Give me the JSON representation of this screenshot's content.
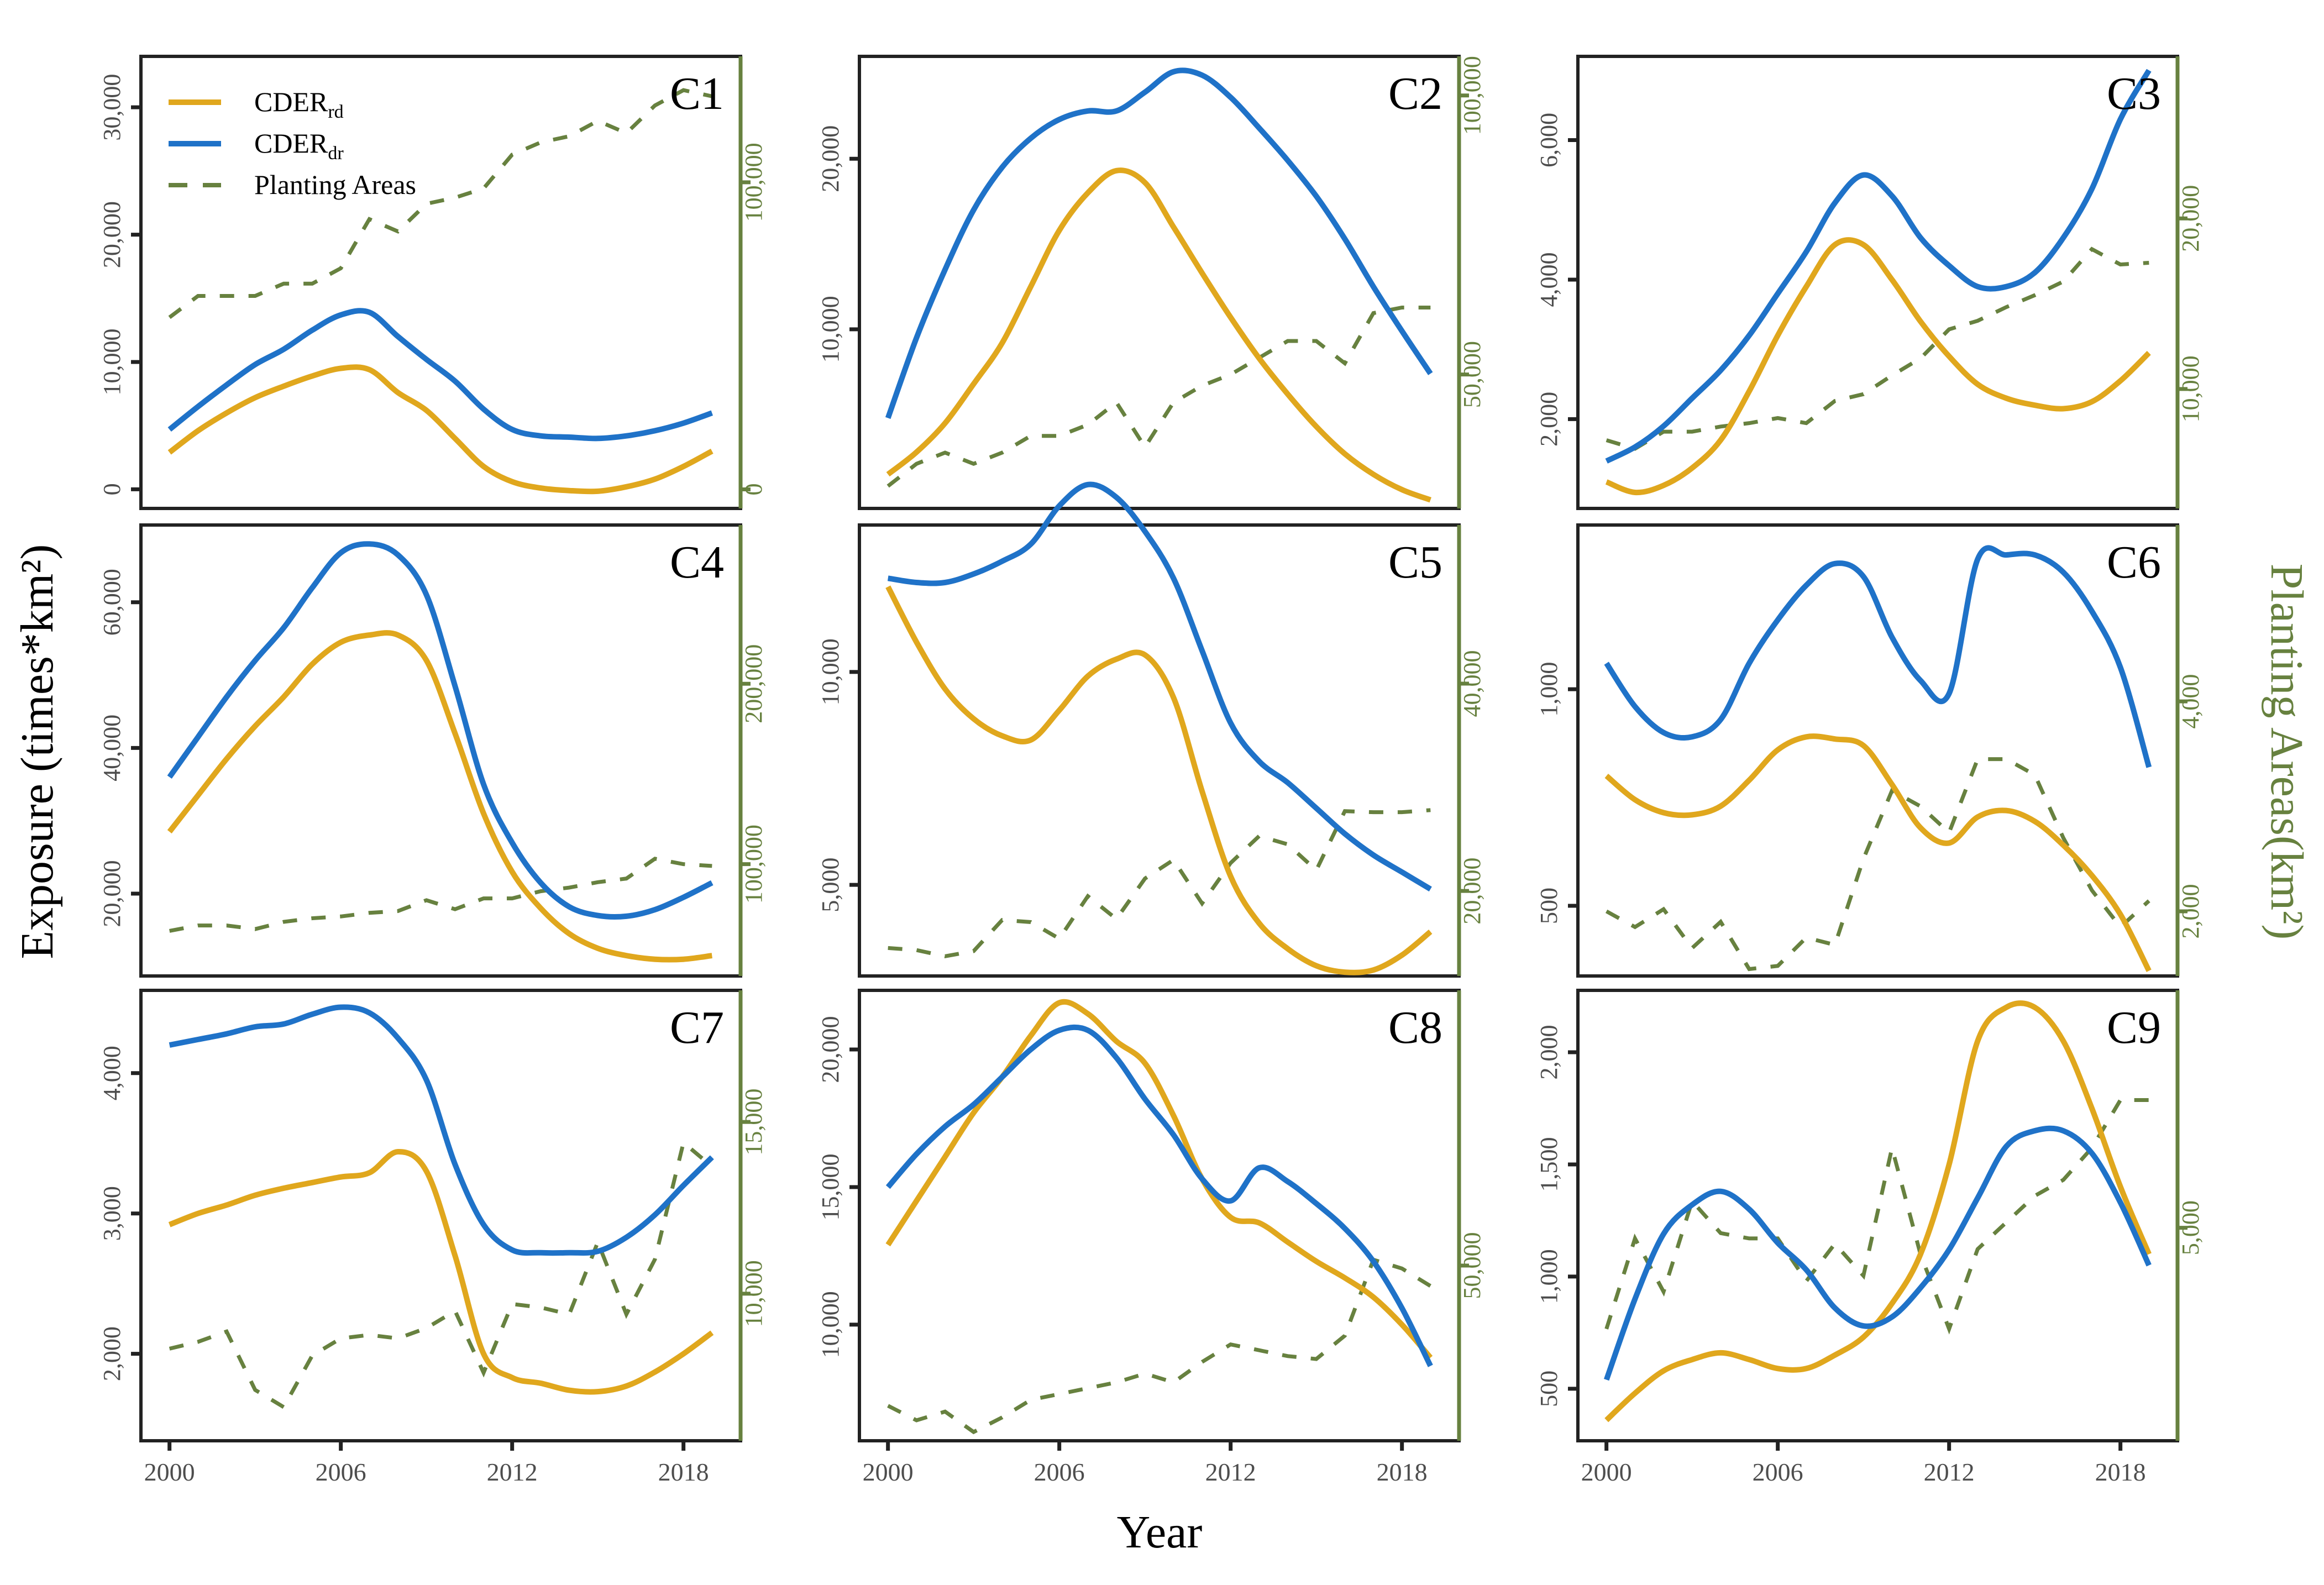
{
  "chart_data": {
    "type": "line",
    "title": "",
    "xlabel": "Year",
    "ylabel": "Exposure (times*km²)",
    "ylabel_right": "Planting Areas(km²)",
    "x": [
      2000,
      2001,
      2002,
      2003,
      2004,
      2005,
      2006,
      2007,
      2008,
      2009,
      2010,
      2011,
      2012,
      2013,
      2014,
      2015,
      2016,
      2017,
      2018,
      2019
    ],
    "xlim": [
      1999,
      2020
    ],
    "xticks": [
      2000,
      2006,
      2012,
      2018
    ],
    "grid": false,
    "legend": {
      "placement": "top-left of panel C1",
      "entries": [
        {
          "name": "CDER",
          "sub": "rd",
          "style": "solid",
          "color": "#e0a71d"
        },
        {
          "name": "CDER",
          "sub": "dr",
          "style": "solid",
          "color": "#1f72c8"
        },
        {
          "name": "Planting Areas",
          "sub": "",
          "style": "dashed",
          "color": "#67813f"
        }
      ]
    },
    "colors": {
      "rd": "#e0a71d",
      "dr": "#1f72c8",
      "planting": "#67813f",
      "axis": "#222222"
    },
    "panels": [
      {
        "label": "C1",
        "ylim": [
          -1500,
          34000
        ],
        "yticks": [
          0,
          10000,
          20000,
          30000
        ],
        "ylim_right": [
          -6200,
          141000
        ],
        "yticks_right": [
          0,
          100000
        ],
        "series": [
          {
            "name": "CDER_rd",
            "values": [
              2900,
              4600,
              6000,
              7200,
              8100,
              8900,
              9500,
              9400,
              7600,
              6200,
              4000,
              1800,
              600,
              100,
              -100,
              -150,
              200,
              800,
              1800,
              3000
            ]
          },
          {
            "name": "CDER_dr",
            "values": [
              4700,
              6500,
              8200,
              9800,
              11000,
              12500,
              13700,
              13900,
              12000,
              10200,
              8500,
              6300,
              4700,
              4200,
              4100,
              4000,
              4200,
              4600,
              5200,
              6000
            ]
          },
          {
            "name": "Planting Areas",
            "values": [
              56000,
              63000,
              63000,
              63000,
              67000,
              67000,
              72000,
              88000,
              84000,
              93000,
              95000,
              98000,
              109000,
              113000,
              115000,
              120000,
              116000,
              125000,
              130000,
              128000
            ]
          }
        ]
      },
      {
        "label": "C2",
        "ylim": [
          -500,
          26000
        ],
        "yticks": [
          10000,
          20000
        ],
        "ylim_right": [
          26000,
          107000
        ],
        "yticks_right": [
          50000,
          100000
        ],
        "series": [
          {
            "name": "CDER_rd",
            "values": [
              1500,
              2800,
              4500,
              6800,
              9200,
              12500,
              15800,
              18000,
              19300,
              18600,
              16000,
              13300,
              10700,
              8300,
              6200,
              4300,
              2700,
              1500,
              600,
              0
            ]
          },
          {
            "name": "CDER_dr",
            "values": [
              4800,
              9500,
              13500,
              17000,
              19500,
              21200,
              22300,
              22800,
              22800,
              23900,
              25100,
              24900,
              23600,
              21800,
              19900,
              17800,
              15300,
              12500,
              9900,
              7400
            ]
          },
          {
            "name": "Planting Areas",
            "values": [
              30000,
              34000,
              36000,
              34000,
              36000,
              39000,
              39000,
              41000,
              45000,
              37000,
              45000,
              48000,
              50000,
              53000,
              56000,
              56000,
              52000,
              61000,
              62000,
              62000
            ]
          }
        ]
      },
      {
        "label": "C3",
        "ylim": [
          720,
          7200
        ],
        "yticks": [
          2000,
          4000,
          6000
        ],
        "ylim_right": [
          3000,
          29500
        ],
        "yticks_right": [
          10000,
          20000
        ],
        "series": [
          {
            "name": "CDER_rd",
            "values": [
              1100,
              950,
              1050,
              1300,
              1700,
              2400,
              3200,
              3900,
              4500,
              4500,
              4000,
              3400,
              2900,
              2500,
              2300,
              2200,
              2150,
              2250,
              2550,
              2950
            ]
          },
          {
            "name": "CDER_dr",
            "values": [
              1400,
              1600,
              1900,
              2300,
              2700,
              3200,
              3800,
              4400,
              5100,
              5500,
              5200,
              4600,
              4200,
              3900,
              3900,
              4100,
              4600,
              5300,
              6300,
              7000
            ]
          },
          {
            "name": "Planting Areas",
            "values": [
              7000,
              6500,
              7500,
              7500,
              7800,
              8000,
              8300,
              8000,
              9300,
              9700,
              10800,
              11800,
              13500,
              14000,
              14800,
              15500,
              16300,
              18200,
              17300,
              17400
            ]
          }
        ]
      },
      {
        "label": "C4",
        "ylim": [
          8700,
          70600
        ],
        "yticks": [
          20000,
          40000,
          60000
        ],
        "ylim_right": [
          38000,
          288000
        ],
        "yticks_right": [
          100000,
          200000
        ],
        "series": [
          {
            "name": "CDER_rd",
            "values": [
              28500,
              33500,
              38500,
              43000,
              47000,
              51500,
              54500,
              55500,
              55500,
              52000,
              42000,
              31000,
              23000,
              18000,
              14500,
              12500,
              11500,
              11000,
              11000,
              11500
            ]
          },
          {
            "name": "CDER_dr",
            "values": [
              36000,
              41500,
              47000,
              52000,
              56500,
              62000,
              66800,
              68000,
              66500,
              61000,
              48500,
              35000,
              27000,
              21500,
              18200,
              17000,
              16900,
              17800,
              19500,
              21500
            ]
          },
          {
            "name": "Planting Areas",
            "values": [
              63000,
              66000,
              66000,
              64000,
              68000,
              70000,
              71000,
              73000,
              74000,
              80000,
              75000,
              81000,
              81000,
              85000,
              87000,
              90000,
              92000,
              103000,
              100000,
              99000
            ]
          }
        ]
      },
      {
        "label": "C5",
        "ylim": [
          2860,
          13450
        ],
        "yticks": [
          5000,
          10000
        ],
        "ylim_right": [
          11800,
          55300
        ],
        "yticks_right": [
          20000,
          40000
        ],
        "series": [
          {
            "name": "CDER_rd",
            "values": [
              12000,
              10700,
              9600,
              8900,
              8500,
              8400,
              9100,
              9900,
              10300,
              10400,
              9400,
              7200,
              5200,
              4100,
              3500,
              3100,
              2950,
              3000,
              3350,
              3900
            ]
          },
          {
            "name": "CDER_dr",
            "values": [
              12200,
              12100,
              12100,
              12300,
              12600,
              13000,
              13900,
              14400,
              14100,
              13300,
              12200,
              10500,
              8800,
              7900,
              7400,
              6800,
              6200,
              5700,
              5300,
              4900
            ]
          },
          {
            "name": "Planting Areas",
            "values": [
              14500,
              14300,
              13700,
              14200,
              17200,
              17000,
              15400,
              19500,
              17300,
              21200,
              23000,
              18800,
              22700,
              25300,
              24500,
              22000,
              27700,
              27600,
              27600,
              27800
            ]
          }
        ]
      },
      {
        "label": "C6",
        "ylim": [
          338,
          1379
        ],
        "yticks": [
          500,
          1000
        ],
        "ylim_right": [
          1384,
          5680
        ],
        "yticks_right": [
          2000,
          4000
        ],
        "series": [
          {
            "name": "CDER_rd",
            "values": [
              800,
              745,
              715,
              710,
              730,
              790,
              860,
              890,
              885,
              870,
              780,
              680,
              645,
              705,
              720,
              695,
              640,
              570,
              480,
              350
            ]
          },
          {
            "name": "CDER_dr",
            "values": [
              1060,
              960,
              900,
              890,
              930,
              1060,
              1160,
              1240,
              1290,
              1260,
              1120,
              1020,
              990,
              1300,
              1310,
              1310,
              1270,
              1180,
              1050,
              820
            ]
          },
          {
            "name": "Planting Areas",
            "values": [
              2000,
              1850,
              2020,
              1650,
              1900,
              1450,
              1480,
              1750,
              1680,
              2500,
              3150,
              3000,
              2750,
              3450,
              3450,
              3300,
              2700,
              2200,
              1850,
              2100
            ]
          }
        ]
      },
      {
        "label": "C7",
        "ylim": [
          1380,
          4590
        ],
        "yticks": [
          2000,
          3000,
          4000
        ],
        "ylim_right": [
          5720,
          18830
        ],
        "yticks_right": [
          10000,
          15000
        ],
        "series": [
          {
            "name": "CDER_rd",
            "values": [
              2920,
              3000,
              3060,
              3130,
              3180,
              3220,
              3260,
              3290,
              3440,
              3300,
              2700,
              2000,
              1830,
              1790,
              1740,
              1730,
              1770,
              1870,
              2000,
              2150
            ]
          },
          {
            "name": "CDER_dr",
            "values": [
              4200,
              4240,
              4280,
              4330,
              4350,
              4420,
              4470,
              4430,
              4250,
              3950,
              3350,
              2920,
              2740,
              2720,
              2720,
              2730,
              2830,
              2990,
              3200,
              3400
            ]
          },
          {
            "name": "Planting Areas",
            "values": [
              8400,
              8600,
              8900,
              7200,
              6700,
              8200,
              8700,
              8800,
              8700,
              9000,
              9500,
              7700,
              9700,
              9600,
              9400,
              11500,
              9400,
              11000,
              14400,
              13700
            ]
          }
        ]
      },
      {
        "label": "C8",
        "ylim": [
          5780,
          22150
        ],
        "yticks": [
          10000,
          15000,
          20000
        ],
        "ylim_right": [
          20000,
          97140
        ],
        "yticks_right": [
          50000
        ],
        "series": [
          {
            "name": "CDER_rd",
            "values": [
              12900,
              14500,
              16100,
              17700,
              19000,
              20500,
              21700,
              21300,
              20300,
              19500,
              17600,
              15300,
              13900,
              13700,
              13000,
              12300,
              11700,
              11000,
              10000,
              8800
            ]
          },
          {
            "name": "CDER_dr",
            "values": [
              15000,
              16200,
              17200,
              18000,
              19000,
              20000,
              20700,
              20700,
              19700,
              18200,
              16900,
              15300,
              14500,
              15700,
              15200,
              14400,
              13500,
              12300,
              10600,
              8500
            ]
          },
          {
            "name": "Planting Areas",
            "values": [
              26000,
              23500,
              25000,
              21500,
              24000,
              27000,
              28000,
              29000,
              30000,
              31500,
              30000,
              33500,
              36500,
              35500,
              34500,
              34000,
              38000,
              51000,
              49500,
              46500
            ]
          }
        ]
      },
      {
        "label": "C9",
        "ylim": [
          268,
          2276
        ],
        "yticks": [
          500,
          1000,
          1500,
          2000
        ],
        "ylim_right": [
          1000,
          9460
        ],
        "yticks_right": [
          5000
        ],
        "series": [
          {
            "name": "CDER_rd",
            "values": [
              360,
              480,
              580,
              630,
              660,
              630,
              590,
              590,
              650,
              730,
              880,
              1100,
              1500,
              2050,
              2200,
              2200,
              2050,
              1750,
              1400,
              1100
            ]
          },
          {
            "name": "CDER_dr",
            "values": [
              540,
              900,
              1190,
              1320,
              1380,
              1300,
              1150,
              1030,
              860,
              780,
              820,
              950,
              1120,
              1350,
              1580,
              1650,
              1650,
              1550,
              1330,
              1050
            ]
          },
          {
            "name": "Planting Areas",
            "values": [
              3100,
              4800,
              3800,
              5500,
              4900,
              4800,
              4800,
              4000,
              4700,
              4100,
              6500,
              4500,
              3100,
              4600,
              5100,
              5600,
              5900,
              6500,
              7400,
              7400
            ]
          }
        ]
      }
    ]
  }
}
